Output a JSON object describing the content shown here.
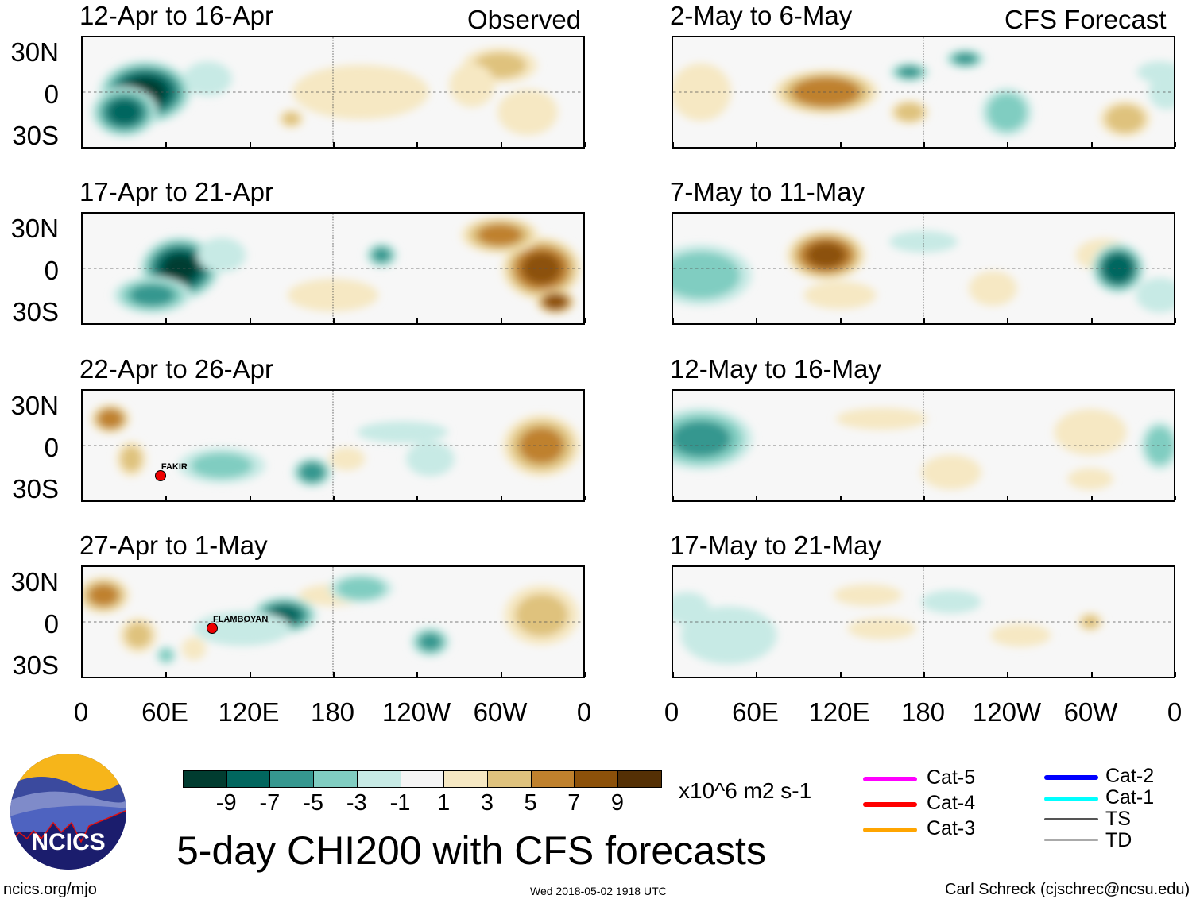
{
  "headers": {
    "observed": "Observed",
    "forecast": "CFS Forecast"
  },
  "lat_labels": [
    "30N",
    "0",
    "30S"
  ],
  "lon_labels": [
    "0",
    "60E",
    "120E",
    "180",
    "120W",
    "60W",
    "0"
  ],
  "panels": [
    {
      "title": "12-Apr to 16-Apr",
      "col": "observed",
      "anoms": [
        [
          45,
          0,
          -10,
          35,
          25
        ],
        [
          30,
          -15,
          -8,
          25,
          20
        ],
        [
          90,
          10,
          -3,
          20,
          15
        ],
        [
          200,
          0,
          2,
          60,
          25
        ],
        [
          300,
          20,
          4,
          30,
          15
        ],
        [
          320,
          -15,
          3,
          25,
          20
        ],
        [
          150,
          -20,
          4,
          10,
          8
        ],
        [
          280,
          5,
          2,
          20,
          20
        ]
      ]
    },
    {
      "title": "17-Apr to 21-Apr",
      "col": "observed",
      "anoms": [
        [
          70,
          0,
          -10,
          30,
          25
        ],
        [
          50,
          -20,
          -6,
          30,
          15
        ],
        [
          100,
          10,
          -3,
          20,
          15
        ],
        [
          215,
          10,
          -6,
          12,
          10
        ],
        [
          330,
          0,
          8,
          30,
          25
        ],
        [
          300,
          25,
          6,
          30,
          15
        ],
        [
          340,
          -25,
          9,
          15,
          10
        ],
        [
          180,
          -20,
          2,
          40,
          15
        ]
      ]
    },
    {
      "title": "22-Apr to 26-Apr",
      "col": "observed",
      "anoms": [
        [
          20,
          20,
          7,
          15,
          12
        ],
        [
          35,
          -10,
          4,
          12,
          15
        ],
        [
          330,
          0,
          6,
          30,
          25
        ],
        [
          190,
          -10,
          3,
          15,
          10
        ],
        [
          100,
          -15,
          -4,
          35,
          15
        ],
        [
          165,
          -20,
          -7,
          15,
          12
        ],
        [
          250,
          -10,
          -3,
          20,
          15
        ],
        [
          230,
          10,
          -2,
          40,
          10
        ]
      ],
      "storm": {
        "name": "FAKIR",
        "lon": 55,
        "lat": -20
      }
    },
    {
      "title": "27-Apr to 1-May",
      "col": "observed",
      "anoms": [
        [
          15,
          20,
          6,
          20,
          15
        ],
        [
          40,
          -10,
          4,
          15,
          15
        ],
        [
          330,
          5,
          4,
          30,
          25
        ],
        [
          80,
          -20,
          3,
          10,
          10
        ],
        [
          180,
          20,
          2,
          30,
          10
        ],
        [
          145,
          5,
          -8,
          25,
          15
        ],
        [
          200,
          25,
          -5,
          25,
          12
        ],
        [
          250,
          -15,
          -6,
          15,
          12
        ],
        [
          115,
          -5,
          -3,
          40,
          15
        ],
        [
          60,
          -25,
          -4,
          8,
          8
        ]
      ],
      "storm": {
        "name": "FLAMBOYAN",
        "lon": 92,
        "lat": -3
      }
    },
    {
      "title": "2-May to 6-May",
      "col": "forecast",
      "anoms": [
        [
          110,
          0,
          7,
          40,
          18
        ],
        [
          20,
          0,
          3,
          25,
          25
        ],
        [
          170,
          -15,
          5,
          15,
          10
        ],
        [
          325,
          -20,
          5,
          20,
          15
        ],
        [
          170,
          15,
          -6,
          15,
          8
        ],
        [
          210,
          25,
          -6,
          15,
          8
        ],
        [
          240,
          -15,
          -5,
          20,
          20
        ],
        [
          355,
          0,
          -3,
          15,
          15
        ],
        [
          350,
          15,
          -2,
          20,
          10
        ]
      ]
    },
    {
      "title": "7-May to 11-May",
      "col": "forecast",
      "anoms": [
        [
          110,
          10,
          8,
          30,
          20
        ],
        [
          120,
          -20,
          3,
          30,
          12
        ],
        [
          230,
          -15,
          3,
          20,
          15
        ],
        [
          310,
          10,
          2,
          25,
          15
        ],
        [
          20,
          -5,
          -5,
          40,
          25
        ],
        [
          320,
          0,
          -9,
          20,
          20
        ],
        [
          350,
          -20,
          -3,
          20,
          15
        ],
        [
          180,
          20,
          -2,
          30,
          10
        ]
      ]
    },
    {
      "title": "12-May to 16-May",
      "col": "forecast",
      "anoms": [
        [
          20,
          5,
          -6,
          40,
          25
        ],
        [
          350,
          0,
          -5,
          15,
          20
        ],
        [
          150,
          20,
          2,
          40,
          10
        ],
        [
          200,
          -20,
          3,
          25,
          15
        ],
        [
          300,
          10,
          3,
          30,
          20
        ],
        [
          300,
          -25,
          2,
          20,
          10
        ]
      ]
    },
    {
      "title": "17-May to 21-May",
      "col": "forecast",
      "anoms": [
        [
          40,
          -10,
          -3,
          40,
          25
        ],
        [
          200,
          15,
          -3,
          25,
          10
        ],
        [
          10,
          10,
          -2,
          20,
          15
        ],
        [
          140,
          20,
          2,
          30,
          10
        ],
        [
          250,
          -10,
          3,
          25,
          10
        ],
        [
          300,
          0,
          4,
          10,
          8
        ],
        [
          150,
          -5,
          2,
          30,
          10
        ]
      ]
    }
  ],
  "colorbar": {
    "colors": [
      "#013c30",
      "#01665e",
      "#35978f",
      "#80cdc1",
      "#c7eae5",
      "#f5f5f5",
      "#f6e8c3",
      "#dfc27d",
      "#bf812d",
      "#8c510a",
      "#543005"
    ],
    "labels": [
      "-9",
      "-7",
      "-5",
      "-3",
      "-1",
      "1",
      "3",
      "5",
      "7",
      "9"
    ],
    "units": "x10^6 m2 s-1"
  },
  "legend": [
    {
      "label": "Cat-5",
      "color": "#ff00ff"
    },
    {
      "label": "Cat-4",
      "color": "#ff0000"
    },
    {
      "label": "Cat-3",
      "color": "#ffa500"
    },
    {
      "label": "Cat-2",
      "color": "#0000ff"
    },
    {
      "label": "Cat-1",
      "color": "#00ffff"
    },
    {
      "label": "TS",
      "color": "#555555"
    },
    {
      "label": "TD",
      "color": "#aaaaaa"
    }
  ],
  "title": "5-day CHI200 with CFS forecasts",
  "logo_text": "NCICS",
  "footer": {
    "left": "ncics.org/mjo",
    "center": "Wed 2018-05-02 1918 UTC",
    "right": "Carl Schreck (cjschrec@ncsu.edu)"
  }
}
